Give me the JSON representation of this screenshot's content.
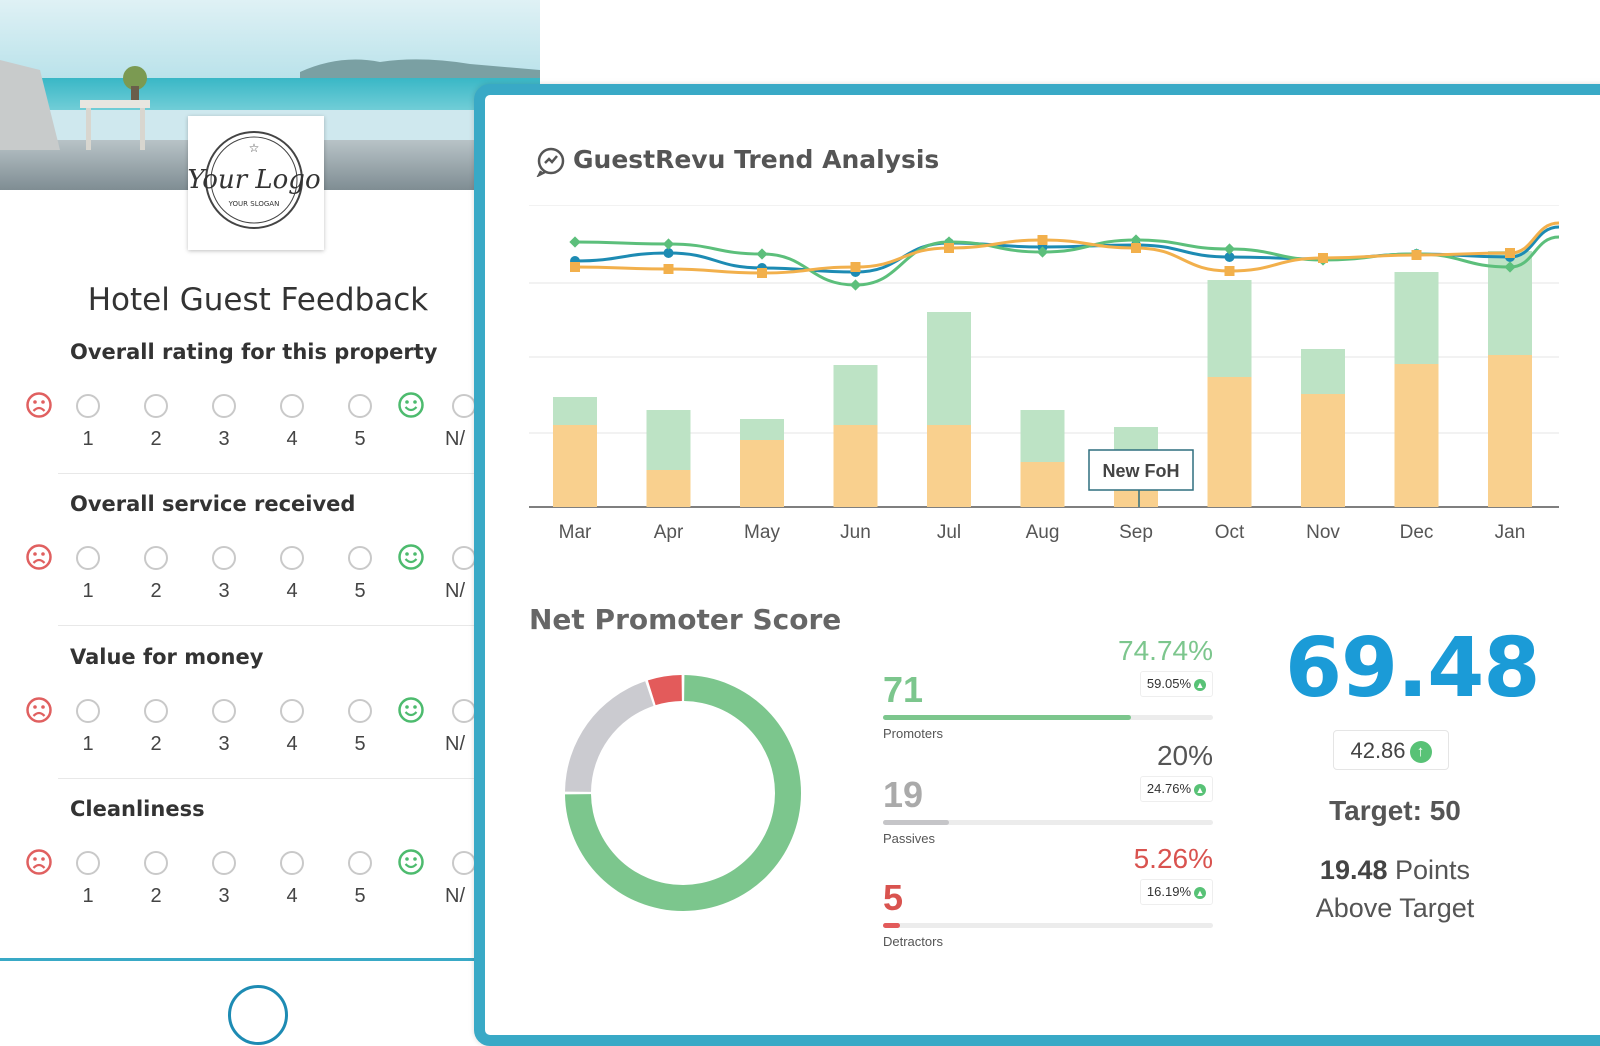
{
  "survey": {
    "logo_text": "Your Logo",
    "logo_slogan": "YOUR SLOGAN",
    "title": "Hotel Guest Feedback",
    "scale": [
      "1",
      "2",
      "3",
      "4",
      "5"
    ],
    "na_label": "N/",
    "questions": [
      {
        "label": "Overall rating for this property"
      },
      {
        "label": "Overall service received"
      },
      {
        "label": "Value for money"
      },
      {
        "label": "Cleanliness"
      }
    ]
  },
  "dashboard": {
    "title": "GuestRevu Trend Analysis",
    "annotation": "New FoH",
    "nps_title": "Net Promoter Score",
    "promoters": {
      "pct": "74.74%",
      "delta": "59.05%",
      "count": "71",
      "label": "Promoters",
      "fraction": 0.75
    },
    "passives": {
      "pct": "20%",
      "delta": "24.76%",
      "count": "19",
      "label": "Passives",
      "fraction": 0.2
    },
    "detractors": {
      "pct": "5.26%",
      "delta": "16.19%",
      "count": "5",
      "label": "Detractors",
      "fraction": 0.05
    },
    "score": "69.48",
    "score_delta": "42.86",
    "target": "Target: 50",
    "above_points": "19.48",
    "above_text": "Points",
    "above_text2": "Above Target"
  },
  "chart_data": {
    "type": "bar",
    "categories": [
      "Mar",
      "Apr",
      "May",
      "Jun",
      "Jul",
      "Aug",
      "Sep",
      "Oct",
      "Nov",
      "Dec",
      "Jan"
    ],
    "bar_series": [
      {
        "values": [
          82,
          37,
          67,
          82,
          82,
          45,
          20,
          130,
          113,
          143,
          152
        ],
        "color": "#f9d08e"
      },
      {
        "values": [
          28,
          60,
          21,
          60,
          113,
          52,
          60,
          97,
          45,
          92,
          104
        ],
        "color": "#bde3c5"
      }
    ],
    "line_series": [
      {
        "color": "#1d8bb3",
        "values": [
          44,
          52,
          37,
          33,
          62,
          58,
          60,
          48,
          46,
          51,
          48
        ]
      },
      {
        "color": "#5cbf7b",
        "values": [
          63,
          61,
          51,
          20,
          63,
          53,
          65,
          56,
          45,
          51,
          38
        ]
      },
      {
        "color": "#f2b04c",
        "values": [
          38,
          36,
          32,
          38,
          57,
          65,
          57,
          34,
          47,
          50,
          52
        ]
      }
    ],
    "annotation_category": "Sep",
    "annotation_label": "New FoH",
    "colors": {
      "promoters": "#7cc68d",
      "passives": "#cbcbd0",
      "detractors": "#e35b5b",
      "accent": "#39a9c6"
    }
  }
}
